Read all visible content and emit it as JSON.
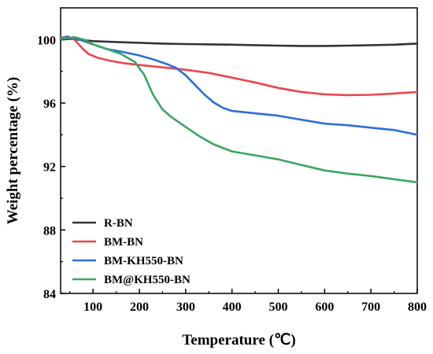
{
  "chart_data": {
    "type": "line",
    "title": "",
    "xlabel": "Temperature (℃)",
    "ylabel": "Weight percentage (%)",
    "xlim": [
      30,
      800
    ],
    "ylim": [
      84,
      102
    ],
    "xticks": [
      100,
      200,
      300,
      400,
      500,
      600,
      700,
      800
    ],
    "yticks": [
      84,
      88,
      92,
      96,
      100
    ],
    "grid": false,
    "legend_position": "bottom-left",
    "series": [
      {
        "name": "R-BN",
        "color": "#333333",
        "x": [
          30,
          50,
          100,
          150,
          200,
          250,
          300,
          350,
          400,
          450,
          500,
          550,
          600,
          650,
          700,
          750,
          800
        ],
        "y": [
          100.0,
          100.05,
          99.9,
          99.85,
          99.8,
          99.75,
          99.72,
          99.7,
          99.68,
          99.65,
          99.62,
          99.6,
          99.6,
          99.62,
          99.65,
          99.68,
          99.75
        ]
      },
      {
        "name": "BM-BN",
        "color": "#e8474c",
        "x": [
          30,
          45,
          60,
          75,
          90,
          110,
          140,
          170,
          200,
          250,
          300,
          350,
          400,
          450,
          500,
          550,
          600,
          650,
          700,
          750,
          800
        ],
        "y": [
          100.1,
          100.2,
          100.0,
          99.5,
          99.1,
          98.85,
          98.65,
          98.5,
          98.4,
          98.25,
          98.1,
          97.9,
          97.6,
          97.3,
          96.95,
          96.7,
          96.55,
          96.5,
          96.52,
          96.6,
          96.7
        ]
      },
      {
        "name": "BM-KH550-BN",
        "color": "#2c6fd6",
        "x": [
          30,
          45,
          60,
          80,
          100,
          130,
          160,
          200,
          230,
          260,
          280,
          300,
          320,
          340,
          360,
          380,
          400,
          450,
          500,
          550,
          600,
          650,
          700,
          750,
          800
        ],
        "y": [
          100.1,
          100.15,
          100.1,
          99.9,
          99.7,
          99.4,
          99.25,
          99.0,
          98.75,
          98.45,
          98.2,
          97.75,
          97.15,
          96.55,
          96.05,
          95.7,
          95.5,
          95.35,
          95.2,
          94.95,
          94.7,
          94.6,
          94.45,
          94.3,
          94.0
        ]
      },
      {
        "name": "BM@KH550-BN",
        "color": "#3aa662",
        "x": [
          30,
          45,
          60,
          80,
          100,
          130,
          160,
          190,
          210,
          230,
          250,
          270,
          300,
          330,
          360,
          400,
          450,
          500,
          550,
          600,
          650,
          700,
          750,
          800
        ],
        "y": [
          100.05,
          100.1,
          100.15,
          100.0,
          99.7,
          99.4,
          99.1,
          98.6,
          97.8,
          96.5,
          95.6,
          95.1,
          94.5,
          93.9,
          93.4,
          92.95,
          92.7,
          92.45,
          92.1,
          91.75,
          91.55,
          91.4,
          91.2,
          91.0
        ]
      }
    ]
  }
}
